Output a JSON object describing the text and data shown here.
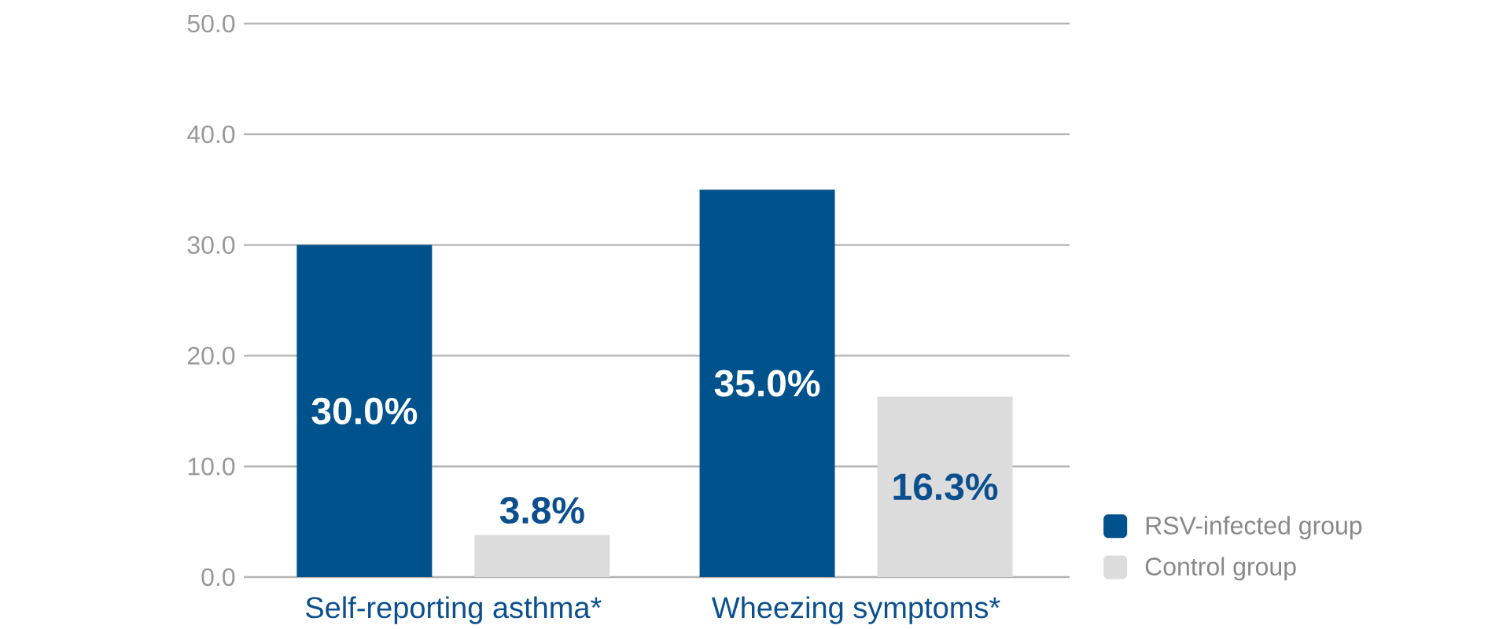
{
  "chart_data": {
    "type": "bar",
    "categories": [
      "Self-reporting asthma*",
      "Wheezing symptoms*"
    ],
    "series": [
      {
        "name": "RSV-infected group",
        "color": "#00528c",
        "values": [
          30.0,
          35.0
        ],
        "value_labels": [
          "30.0%",
          "35.0%"
        ]
      },
      {
        "name": "Control group",
        "color": "#dcdcdc",
        "values": [
          3.8,
          16.3
        ],
        "value_labels": [
          "3.8%",
          "16.3%"
        ]
      }
    ],
    "ylim": [
      0,
      50
    ],
    "yticks": [
      {
        "value": 0,
        "label": "0.0"
      },
      {
        "value": 10,
        "label": "10.0"
      },
      {
        "value": 20,
        "label": "20.0"
      },
      {
        "value": 30,
        "label": "30.0"
      },
      {
        "value": 40,
        "label": "40.0"
      },
      {
        "value": 50,
        "label": "50.0"
      }
    ],
    "grid": "y",
    "legend": "bottom right"
  }
}
